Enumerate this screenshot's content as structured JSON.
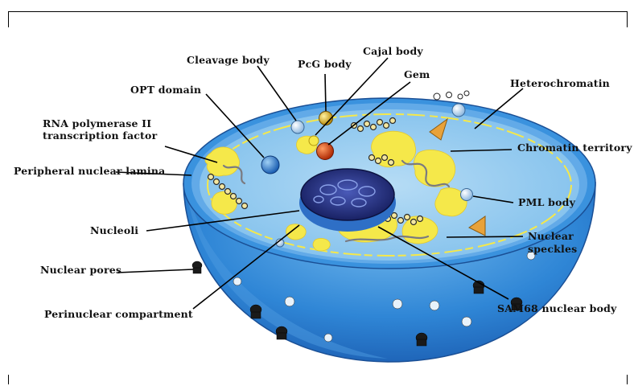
{
  "diagram": {
    "labels": {
      "cleavage_body": "Cleavage body",
      "pcg_body": "PcG body",
      "cajal_body": "Cajal body",
      "gem": "Gem",
      "opt_domain": "OPT domain",
      "heterochromatin": "Heterochromatin",
      "rna_pol_line1": "RNA polymerase II",
      "rna_pol_line2": "transcription factor",
      "chromatin_territory": "Chromatin territory",
      "peripheral_lamina": "Peripheral nuclear lamina",
      "pml_body": "PML body",
      "nucleoli": "Nucleoli",
      "nuclear_speckles_line1": "Nuclear",
      "nuclear_speckles_line2": "speckles",
      "nuclear_pores": "Nuclear pores",
      "sam68_body": "SAM68 nuclear body",
      "perinuclear": "Perinuclear compartment"
    },
    "colors": {
      "outer_blue": "#2f86d6",
      "inner_blue": "#8ec8ee",
      "rim_blue": "#5aa8e6",
      "chromatin_yellow": "#f5e84a",
      "nucleolus_navy": "#1e2a78",
      "gem_red": "#d84a14",
      "pcg_gold": "#d9a81c",
      "heterochromatin_orange": "#e8a23a",
      "body_light": "#cfe4f7"
    }
  }
}
